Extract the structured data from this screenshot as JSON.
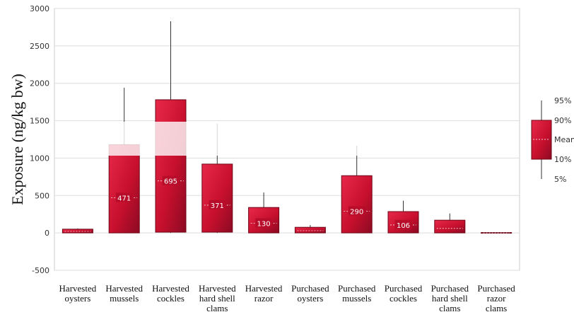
{
  "chart_data": {
    "type": "box",
    "ylabel": "Exposure (ng/kg bw)",
    "ylim": [
      -500,
      3000
    ],
    "yticks": [
      -500,
      0,
      500,
      1000,
      1500,
      2000,
      2500,
      3000
    ],
    "grid": true,
    "legend": {
      "position": "right",
      "labels": [
        "95%",
        "90%",
        "Mean",
        "10%",
        "5%"
      ]
    },
    "categories": [
      [
        "Harvested",
        "oysters"
      ],
      [
        "Harvested",
        "mussels"
      ],
      [
        "Harvested",
        "cockles"
      ],
      [
        "Harvested",
        "hard shell",
        "clams"
      ],
      [
        "Harvested",
        "razor"
      ],
      [
        "Purchased",
        "oysters"
      ],
      [
        "Purchased",
        "mussels"
      ],
      [
        "Purchased",
        "cockles"
      ],
      [
        "Purchased",
        "hard shell",
        "clams"
      ],
      [
        "Purchased",
        "razor",
        "clams"
      ]
    ],
    "series": [
      {
        "p5": 0,
        "p10": 0,
        "mean": 20,
        "p90": 50,
        "p95": 60,
        "label": ""
      },
      {
        "p5": 0,
        "p10": 0,
        "mean": 471,
        "p90": 1180,
        "p95": 1940,
        "label": "471"
      },
      {
        "p5": 0,
        "p10": 10,
        "mean": 695,
        "p90": 1780,
        "p95": 2830,
        "label": "695"
      },
      {
        "p5": 0,
        "p10": 10,
        "mean": 371,
        "p90": 920,
        "p95": 1460,
        "label": "371"
      },
      {
        "p5": 0,
        "p10": 0,
        "mean": 130,
        "p90": 340,
        "p95": 540,
        "label": "130"
      },
      {
        "p5": 0,
        "p10": 0,
        "mean": 30,
        "p90": 75,
        "p95": 105,
        "label": ""
      },
      {
        "p5": 0,
        "p10": 0,
        "mean": 290,
        "p90": 765,
        "p95": 1165,
        "label": "290"
      },
      {
        "p5": 0,
        "p10": 0,
        "mean": 106,
        "p90": 285,
        "p95": 430,
        "label": "106"
      },
      {
        "p5": 0,
        "p10": 0,
        "mean": 60,
        "p90": 170,
        "p95": 260,
        "label": ""
      },
      {
        "p5": 0,
        "p10": 0,
        "mean": 0,
        "p90": 5,
        "p95": 5,
        "label": ""
      }
    ],
    "colors": {
      "box": "#c8102e",
      "box_dark": "#8c0a22",
      "whisker": "#333333",
      "grid": "#dddddd"
    }
  }
}
